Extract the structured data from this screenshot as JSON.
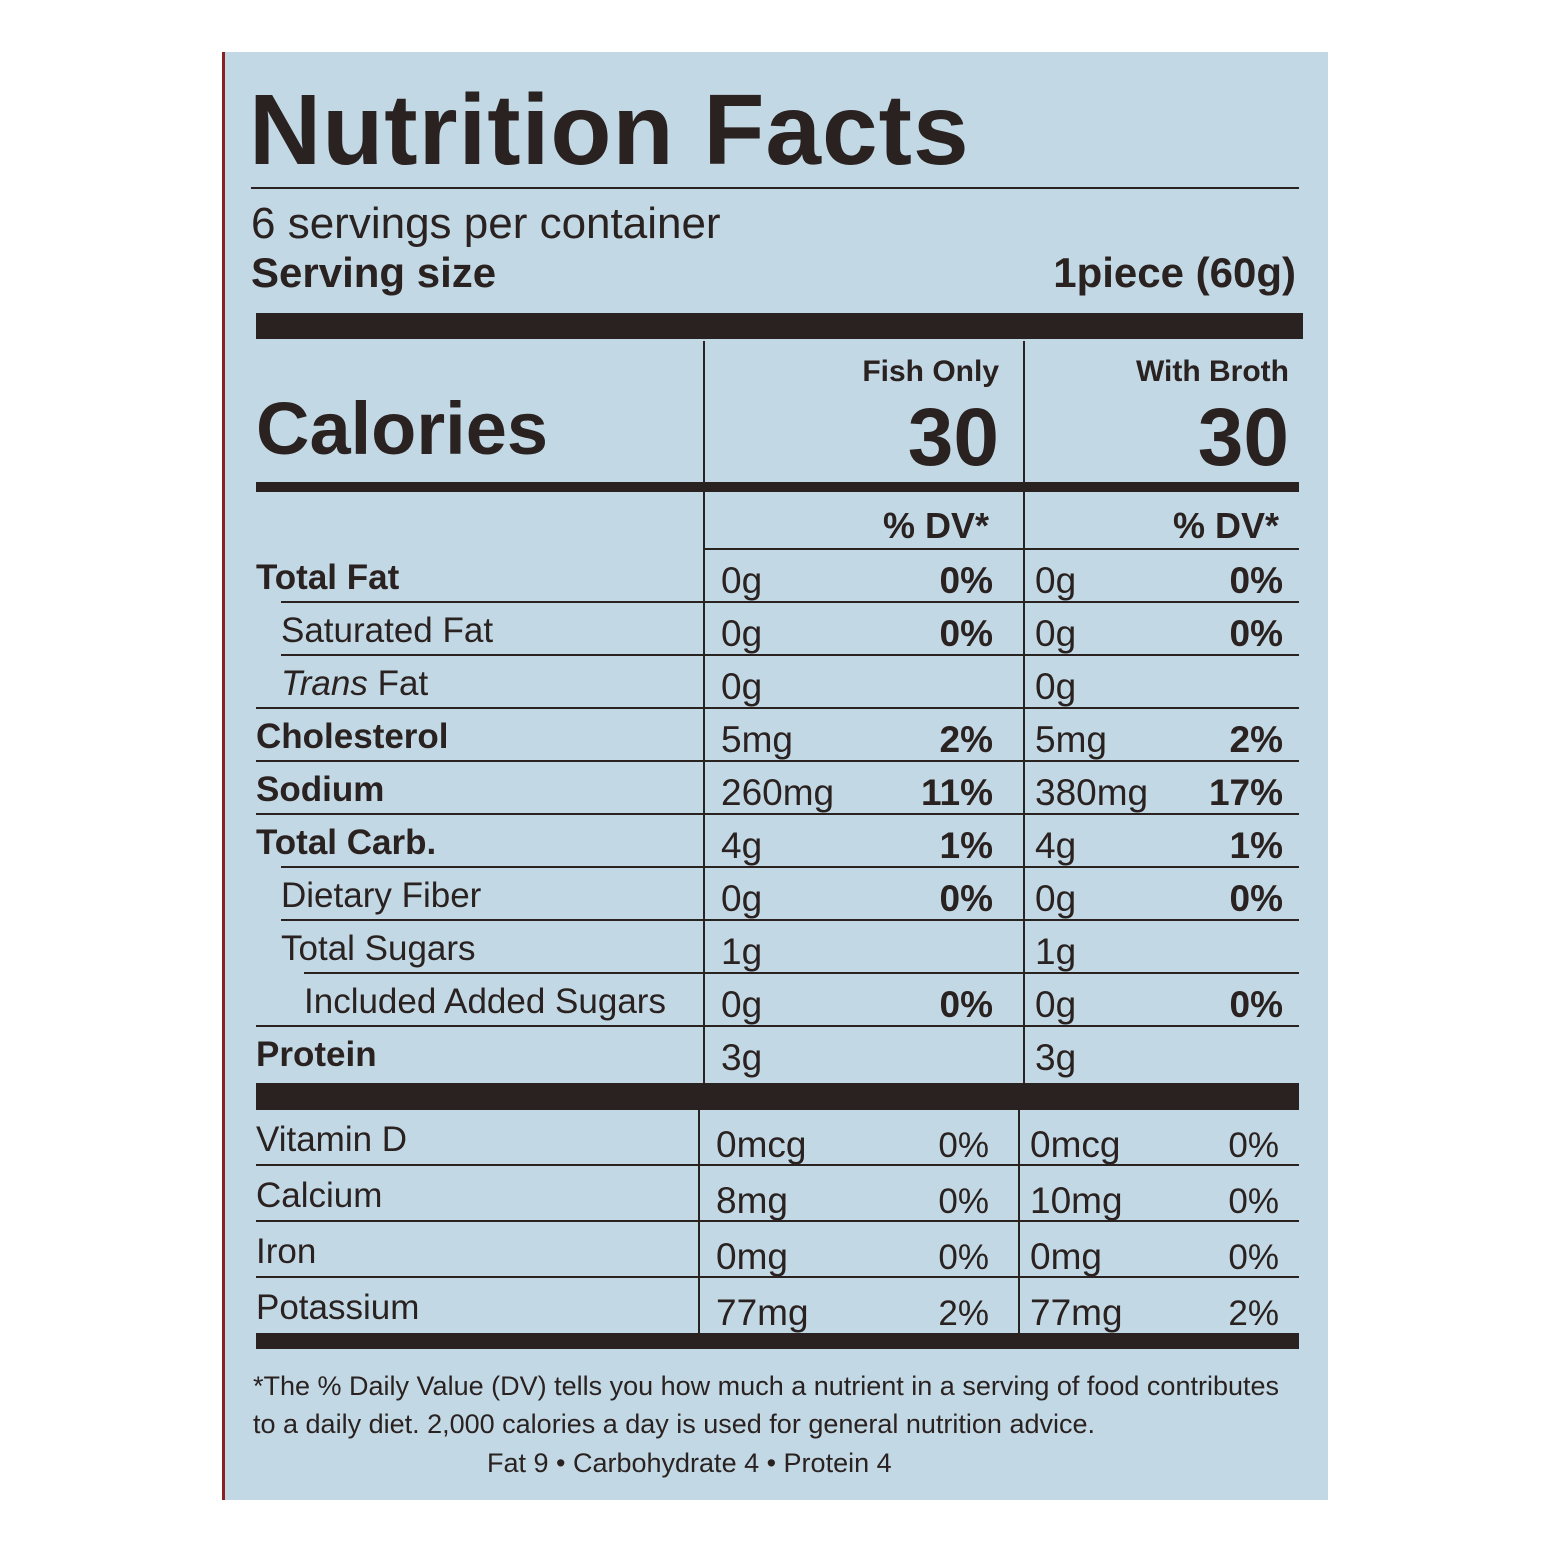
{
  "title": "Nutrition Facts",
  "servings": "6 servings per container",
  "serving_size": {
    "label": "Serving size",
    "value": "1piece (60g)"
  },
  "columns": [
    "Fish Only",
    "With Broth"
  ],
  "calories": {
    "label": "Calories",
    "values": [
      "30",
      "30"
    ]
  },
  "dv_header": [
    "% DV*",
    "% DV*"
  ],
  "nutrients": [
    {
      "name": "Total Fat",
      "bold": true,
      "indent": 0,
      "values": [
        {
          "amount": "0g",
          "dv": "0%"
        },
        {
          "amount": "0g",
          "dv": "0%"
        }
      ]
    },
    {
      "name": "Saturated Fat",
      "bold": false,
      "indent": 1,
      "values": [
        {
          "amount": "0g",
          "dv": "0%"
        },
        {
          "amount": "0g",
          "dv": "0%"
        }
      ]
    },
    {
      "name_italic": "Trans",
      "name": "Fat",
      "bold": false,
      "indent": 1,
      "values": [
        {
          "amount": "0g"
        },
        {
          "amount": "0g"
        }
      ]
    },
    {
      "name": "Cholesterol",
      "bold": true,
      "indent": 0,
      "values": [
        {
          "amount": "5mg",
          "dv": "2%"
        },
        {
          "amount": "5mg",
          "dv": "2%"
        }
      ]
    },
    {
      "name": "Sodium",
      "bold": true,
      "indent": 0,
      "values": [
        {
          "amount": "260mg",
          "dv": "11%"
        },
        {
          "amount": "380mg",
          "dv": "17%"
        }
      ]
    },
    {
      "name": "Total Carb.",
      "bold": true,
      "indent": 0,
      "values": [
        {
          "amount": "4g",
          "dv": "1%"
        },
        {
          "amount": "4g",
          "dv": "1%"
        }
      ]
    },
    {
      "name": "Dietary Fiber",
      "bold": false,
      "indent": 1,
      "values": [
        {
          "amount": "0g",
          "dv": "0%"
        },
        {
          "amount": "0g",
          "dv": "0%"
        }
      ]
    },
    {
      "name": "Total Sugars",
      "bold": false,
      "indent": 1,
      "values": [
        {
          "amount": "1g"
        },
        {
          "amount": "1g"
        }
      ]
    },
    {
      "name": "Included Added Sugars",
      "bold": false,
      "indent": 2,
      "values": [
        {
          "amount": "0g",
          "dv": "0%"
        },
        {
          "amount": "0g",
          "dv": "0%"
        }
      ]
    },
    {
      "name": "Protein",
      "bold": true,
      "indent": 0,
      "values": [
        {
          "amount": "3g"
        },
        {
          "amount": "3g"
        }
      ]
    }
  ],
  "vitamins": [
    {
      "name": "Vitamin D",
      "values": [
        {
          "amount": "0mcg",
          "dv": "0%"
        },
        {
          "amount": "0mcg",
          "dv": "0%"
        }
      ]
    },
    {
      "name": "Calcium",
      "values": [
        {
          "amount": "8mg",
          "dv": "0%"
        },
        {
          "amount": "10mg",
          "dv": "0%"
        }
      ]
    },
    {
      "name": "Iron",
      "values": [
        {
          "amount": "0mg",
          "dv": "0%"
        },
        {
          "amount": "0mg",
          "dv": "0%"
        }
      ]
    },
    {
      "name": "Potassium",
      "values": [
        {
          "amount": "77mg",
          "dv": "2%"
        },
        {
          "amount": "77mg",
          "dv": "2%"
        }
      ]
    }
  ],
  "footnote": [
    "*The % Daily Value (DV) tells you how much a nutrient in a serving of food contributes",
    "to a daily diet. 2,000 calories a day is used for general nutrition advice."
  ],
  "footer": "Fat 9 • Carbohydrate 4 • Protein 4"
}
